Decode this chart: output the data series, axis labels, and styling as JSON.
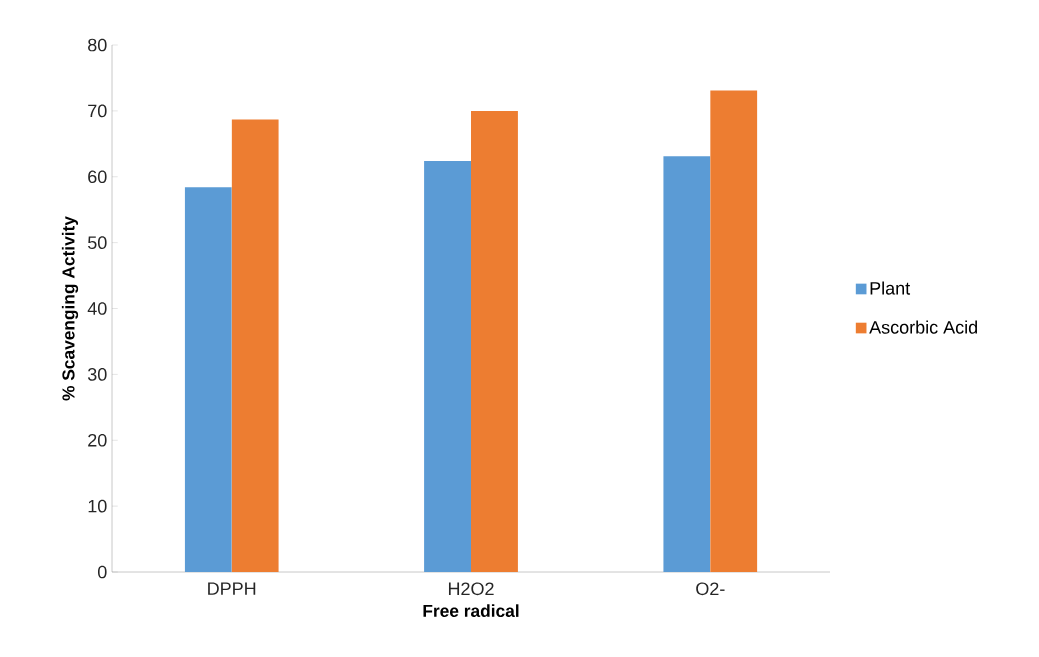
{
  "chart_data": {
    "type": "bar",
    "xlabel": "Free radical",
    "ylabel": "% Scavenging Activity",
    "categories": [
      "DPPH",
      "H2O2",
      "O2-"
    ],
    "series": [
      {
        "name": "Plant",
        "color": "#5b9bd5",
        "values": [
          58.4,
          62.4,
          63.1
        ]
      },
      {
        "name": "Ascorbic Acid",
        "color": "#ed7d31",
        "values": [
          68.7,
          70.0,
          73.1
        ]
      }
    ],
    "ylim": [
      0,
      80
    ],
    "yticks": [
      0,
      10,
      20,
      30,
      40,
      50,
      60,
      70,
      80
    ],
    "grid": false,
    "legend": "right"
  }
}
